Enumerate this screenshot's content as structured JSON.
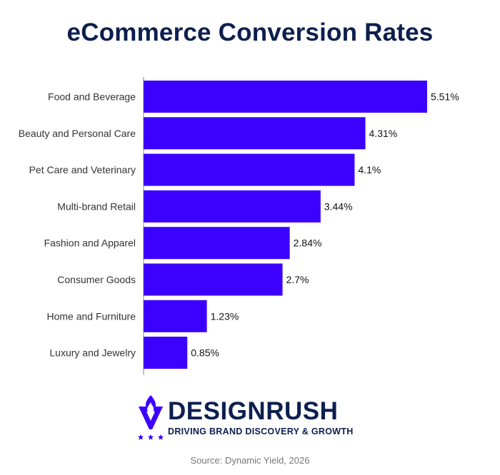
{
  "chart_data": {
    "type": "bar",
    "orientation": "horizontal",
    "title": "eCommerce Conversion Rates",
    "categories": [
      "Food and Beverage",
      "Beauty and Personal Care",
      "Pet Care and Veterinary",
      "Multi-brand Retail",
      "Fashion and Apparel",
      "Consumer Goods",
      "Home and Furniture",
      "Luxury and Jewelry"
    ],
    "values": [
      5.51,
      4.31,
      4.1,
      3.44,
      2.84,
      2.7,
      1.23,
      0.85
    ],
    "value_labels": [
      "5.51%",
      "4.31%",
      "4.1%",
      "3.44%",
      "2.84%",
      "2.7%",
      "1.23%",
      "0.85%"
    ],
    "bar_color": "#3b00ff",
    "xlim": [
      0,
      5.51
    ],
    "grid": false,
    "legend": "none"
  },
  "brand": {
    "name": "DESIGNRUSH",
    "tagline": "DRIVING BRAND DISCOVERY & GROWTH",
    "color": "#0d1f4f",
    "accent": "#3b00ff"
  },
  "source": "Source: Dynamic Yield, 2026"
}
